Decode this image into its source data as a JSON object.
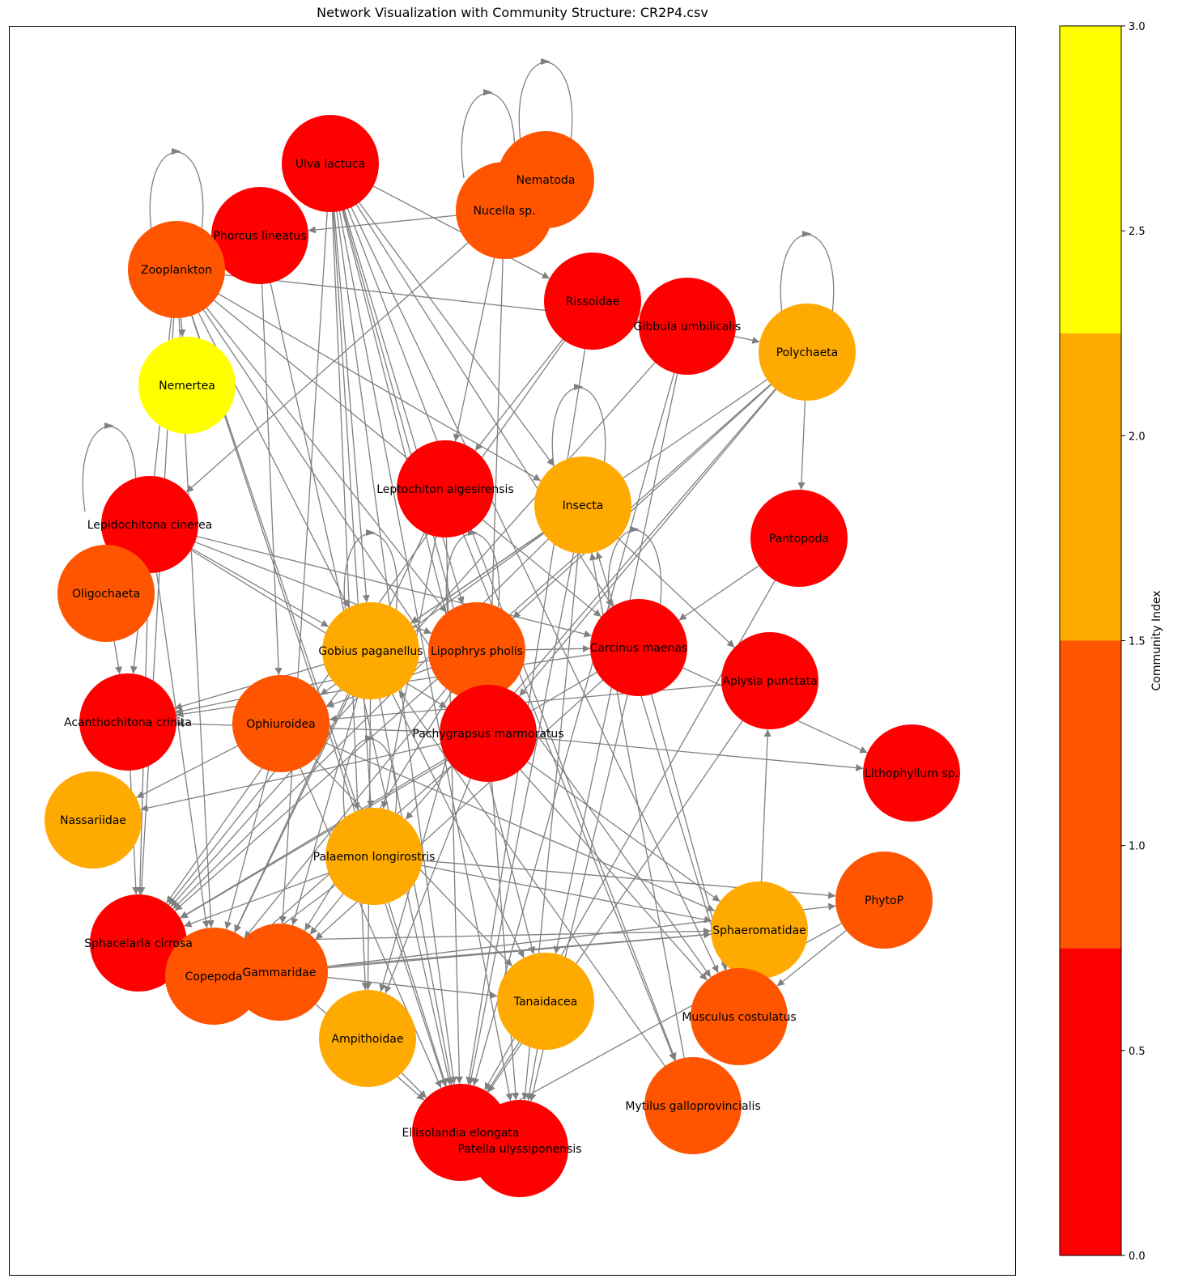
{
  "title": "Network Visualization with Community Structure: CR2P4.csv",
  "colorbar": {
    "label": "Community Index",
    "range": [
      0.0,
      3.0
    ],
    "ticks": [
      "0.0",
      "0.5",
      "1.0",
      "1.5",
      "2.0",
      "2.5",
      "3.0"
    ],
    "bands": [
      {
        "from": 0.0,
        "to": 0.75,
        "color": "#ff0000"
      },
      {
        "from": 0.75,
        "to": 1.5,
        "color": "#ff5500"
      },
      {
        "from": 1.5,
        "to": 2.25,
        "color": "#ffaa00"
      },
      {
        "from": 2.25,
        "to": 3.0,
        "color": "#ffff00"
      }
    ]
  },
  "community_colors": [
    "#ff0000",
    "#ff5500",
    "#ffaa00",
    "#ffff00"
  ],
  "nodes": [
    {
      "id": "Ulva lactuca",
      "community": 0
    },
    {
      "id": "Nematoda",
      "community": 1
    },
    {
      "id": "Nucella sp.",
      "community": 1
    },
    {
      "id": "Phorcus lineatus",
      "community": 0
    },
    {
      "id": "Zooplankton",
      "community": 1
    },
    {
      "id": "Rissoidae",
      "community": 0
    },
    {
      "id": "Gibbula umbilicalis",
      "community": 0
    },
    {
      "id": "Polychaeta",
      "community": 2
    },
    {
      "id": "Nemertea",
      "community": 3
    },
    {
      "id": "Leptochiton algesirensis",
      "community": 0
    },
    {
      "id": "Insecta",
      "community": 2
    },
    {
      "id": "Lepidochitona cinerea",
      "community": 0
    },
    {
      "id": "Pantopoda",
      "community": 0
    },
    {
      "id": "Oligochaeta",
      "community": 1
    },
    {
      "id": "Gobius paganellus",
      "community": 2
    },
    {
      "id": "Lipophrys pholis",
      "community": 1
    },
    {
      "id": "Carcinus maenas",
      "community": 0
    },
    {
      "id": "Aplysia punctata",
      "community": 0
    },
    {
      "id": "Acanthochitona crinita",
      "community": 0
    },
    {
      "id": "Ophiuroidea",
      "community": 1
    },
    {
      "id": "Pachygrapsus marmoratus",
      "community": 0
    },
    {
      "id": "Lithophyllum sp.",
      "community": 0
    },
    {
      "id": "Nassariidae",
      "community": 2
    },
    {
      "id": "Palaemon longirostris",
      "community": 2
    },
    {
      "id": "PhytoP",
      "community": 1
    },
    {
      "id": "Sphacelaria cirrosa",
      "community": 0
    },
    {
      "id": "Sphaeromatidae",
      "community": 2
    },
    {
      "id": "Copepoda",
      "community": 1
    },
    {
      "id": "Gammaridae",
      "community": 1
    },
    {
      "id": "Tanaidacea",
      "community": 2
    },
    {
      "id": "Musculus costulatus",
      "community": 1
    },
    {
      "id": "Ampithoidae",
      "community": 2
    },
    {
      "id": "Mytilus galloprovincialis",
      "community": 1
    },
    {
      "id": "Ellisolandia elongata",
      "community": 0
    },
    {
      "id": "Patella ulyssiponensis",
      "community": 0
    }
  ],
  "self_loops": [
    "Nematoda",
    "Nucella sp.",
    "Zooplankton",
    "Polychaeta",
    "Insecta",
    "Lepidochitona cinerea",
    "Gobius paganellus",
    "Lipophrys pholis",
    "Carcinus maenas",
    "Palaemon longirostris"
  ],
  "edges": [
    [
      "Ulva lactuca",
      "Gobius paganellus"
    ],
    [
      "Ulva lactuca",
      "Lipophrys pholis"
    ],
    [
      "Ulva lactuca",
      "Pachygrapsus marmoratus"
    ],
    [
      "Ulva lactuca",
      "Carcinus maenas"
    ],
    [
      "Ulva lactuca",
      "Palaemon longirostris"
    ],
    [
      "Ulva lactuca",
      "Ellisolandia elongata"
    ],
    [
      "Ulva lactuca",
      "Patella ulyssiponensis"
    ],
    [
      "Ulva lactuca",
      "Rissoidae"
    ],
    [
      "Ulva lactuca",
      "Insecta"
    ],
    [
      "Ulva lactuca",
      "Ampithoidae"
    ],
    [
      "Ulva lactuca",
      "Gammaridae"
    ],
    [
      "Ulva lactuca",
      "Mytilus galloprovincialis"
    ],
    [
      "Ulva lactuca",
      "Musculus costulatus"
    ],
    [
      "Ulva lactuca",
      "Tanaidacea"
    ],
    [
      "Nucella sp.",
      "Phorcus lineatus"
    ],
    [
      "Nucella sp.",
      "Leptochiton algesirensis"
    ],
    [
      "Nucella sp.",
      "Lepidochitona cinerea"
    ],
    [
      "Nucella sp.",
      "Pachygrapsus marmoratus"
    ],
    [
      "Zooplankton",
      "Nemertea"
    ],
    [
      "Zooplankton",
      "Gibbula umbilicalis"
    ],
    [
      "Zooplankton",
      "Gobius paganellus"
    ],
    [
      "Zooplankton",
      "Lipophrys pholis"
    ],
    [
      "Zooplankton",
      "Pachygrapsus marmoratus"
    ],
    [
      "Zooplankton",
      "Carcinus maenas"
    ],
    [
      "Zooplankton",
      "Palaemon longirostris"
    ],
    [
      "Zooplankton",
      "Ellisolandia elongata"
    ],
    [
      "Zooplankton",
      "Insecta"
    ],
    [
      "Zooplankton",
      "Sphacelaria cirrosa"
    ],
    [
      "Zooplankton",
      "Copepoda"
    ],
    [
      "Zooplankton",
      "Acanthochitona crinita"
    ],
    [
      "Phorcus lineatus",
      "Ophiuroidea"
    ],
    [
      "Phorcus lineatus",
      "Ellisolandia elongata"
    ],
    [
      "Rissoidae",
      "Leptochiton algesirensis"
    ],
    [
      "Rissoidae",
      "Sphacelaria cirrosa"
    ],
    [
      "Rissoidae",
      "Ellisolandia elongata"
    ],
    [
      "Gibbula umbilicalis",
      "Polychaeta"
    ],
    [
      "Gibbula umbilicalis",
      "Ellisolandia elongata"
    ],
    [
      "Gibbula umbilicalis",
      "Tanaidacea"
    ],
    [
      "Gibbula umbilicalis",
      "Sphacelaria cirrosa"
    ],
    [
      "Polychaeta",
      "Gobius paganellus"
    ],
    [
      "Polychaeta",
      "Lipophrys pholis"
    ],
    [
      "Polychaeta",
      "Pachygrapsus marmoratus"
    ],
    [
      "Polychaeta",
      "Sphacelaria cirrosa"
    ],
    [
      "Polychaeta",
      "Pantopoda"
    ],
    [
      "Polychaeta",
      "Palaemon longirostris"
    ],
    [
      "Insecta",
      "Gobius paganellus"
    ],
    [
      "Insecta",
      "Ophiuroidea"
    ],
    [
      "Insecta",
      "Sphacelaria cirrosa"
    ],
    [
      "Insecta",
      "Ellisolandia elongata"
    ],
    [
      "Insecta",
      "Patella ulyssiponensis"
    ],
    [
      "Insecta",
      "Aplysia punctata"
    ],
    [
      "Leptochiton algesirensis",
      "Palaemon longirostris"
    ],
    [
      "Leptochiton algesirensis",
      "Ellisolandia elongata"
    ],
    [
      "Leptochiton algesirensis",
      "Mytilus galloprovincialis"
    ],
    [
      "Leptochiton algesirensis",
      "Copepoda"
    ],
    [
      "Lepidochitona cinerea",
      "Gobius paganellus"
    ],
    [
      "Lepidochitona cinerea",
      "Lipophrys pholis"
    ],
    [
      "Lepidochitona cinerea",
      "Carcinus maenas"
    ],
    [
      "Lepidochitona cinerea",
      "Pachygrapsus marmoratus"
    ],
    [
      "Lepidochitona cinerea",
      "Copepoda"
    ],
    [
      "Lepidochitona cinerea",
      "Sphacelaria cirrosa"
    ],
    [
      "Pantopoda",
      "Carcinus maenas"
    ],
    [
      "Pantopoda",
      "Ellisolandia elongata"
    ],
    [
      "Oligochaeta",
      "Acanthochitona crinita"
    ],
    [
      "Gobius paganellus",
      "Acanthochitona crinita"
    ],
    [
      "Gobius paganellus",
      "Ampithoidae"
    ],
    [
      "Gobius paganellus",
      "Copepoda"
    ],
    [
      "Gobius paganellus",
      "Sphacelaria cirrosa"
    ],
    [
      "Gobius paganellus",
      "Gammaridae"
    ],
    [
      "Gobius paganellus",
      "Tanaidacea"
    ],
    [
      "Gobius paganellus",
      "Ellisolandia elongata"
    ],
    [
      "Lipophrys pholis",
      "Acanthochitona crinita"
    ],
    [
      "Lipophrys pholis",
      "Ophiuroidea"
    ],
    [
      "Lipophrys pholis",
      "Copepoda"
    ],
    [
      "Lipophrys pholis",
      "Gammaridae"
    ],
    [
      "Lipophrys pholis",
      "Ampithoidae"
    ],
    [
      "Lipophrys pholis",
      "Musculus costulatus"
    ],
    [
      "Lipophrys pholis",
      "Carcinus maenas"
    ],
    [
      "Carcinus maenas",
      "Acanthochitona crinita"
    ],
    [
      "Carcinus maenas",
      "Sphacelaria cirrosa"
    ],
    [
      "Carcinus maenas",
      "Patella ulyssiponensis"
    ],
    [
      "Carcinus maenas",
      "Musculus costulatus"
    ],
    [
      "Carcinus maenas",
      "Lithophyllum sp."
    ],
    [
      "Carcinus maenas",
      "Gammaridae"
    ],
    [
      "Aplysia punctata",
      "Ophiuroidea"
    ],
    [
      "Aplysia punctata",
      "Ellisolandia elongata"
    ],
    [
      "Pachygrapsus marmoratus",
      "Acanthochitona crinita"
    ],
    [
      "Pachygrapsus marmoratus",
      "Nassariidae"
    ],
    [
      "Pachygrapsus marmoratus",
      "Sphacelaria cirrosa"
    ],
    [
      "Pachygrapsus marmoratus",
      "Lithophyllum sp."
    ],
    [
      "Pachygrapsus marmoratus",
      "Sphaeromatidae"
    ],
    [
      "Pachygrapsus marmoratus",
      "Musculus costulatus"
    ],
    [
      "Pachygrapsus marmoratus",
      "Patella ulyssiponensis"
    ],
    [
      "Pachygrapsus marmoratus",
      "Ampithoidae"
    ],
    [
      "Pachygrapsus marmoratus",
      "Copepoda"
    ],
    [
      "Ophiuroidea",
      "Ellisolandia elongata"
    ],
    [
      "Ophiuroidea",
      "Sphaeromatidae"
    ],
    [
      "Ophiuroidea",
      "Tanaidacea"
    ],
    [
      "Ophiuroidea",
      "Copepoda"
    ],
    [
      "Ophiuroidea",
      "Nassariidae"
    ],
    [
      "Acanthochitona crinita",
      "Sphacelaria cirrosa"
    ],
    [
      "Palaemon longirostris",
      "Sphacelaria cirrosa"
    ],
    [
      "Palaemon longirostris",
      "Copepoda"
    ],
    [
      "Palaemon longirostris",
      "Sphaeromatidae"
    ],
    [
      "Palaemon longirostris",
      "Ellisolandia elongata"
    ],
    [
      "Palaemon longirostris",
      "Gammaridae"
    ],
    [
      "Palaemon longirostris",
      "PhytoP"
    ],
    [
      "Sphacelaria cirrosa",
      "Sphaeromatidae"
    ],
    [
      "Gammaridae",
      "Sphaeromatidae"
    ],
    [
      "Gammaridae",
      "PhytoP"
    ],
    [
      "Gammaridae",
      "Tanaidacea"
    ],
    [
      "Gammaridae",
      "Ellisolandia elongata"
    ],
    [
      "Sphaeromatidae",
      "Aplysia punctata"
    ],
    [
      "Sphaeromatidae",
      "Copepoda"
    ],
    [
      "PhytoP",
      "Ellisolandia elongata"
    ],
    [
      "PhytoP",
      "Musculus costulatus"
    ],
    [
      "Tanaidacea",
      "Ellisolandia elongata"
    ],
    [
      "Tanaidacea",
      "Patella ulyssiponensis"
    ],
    [
      "Mytilus galloprovincialis",
      "Gobius paganellus"
    ],
    [
      "Mytilus galloprovincialis",
      "Insecta"
    ],
    [
      "Musculus costulatus",
      "Insecta"
    ],
    [
      "Ampithoidae",
      "Ellisolandia elongata"
    ]
  ]
}
